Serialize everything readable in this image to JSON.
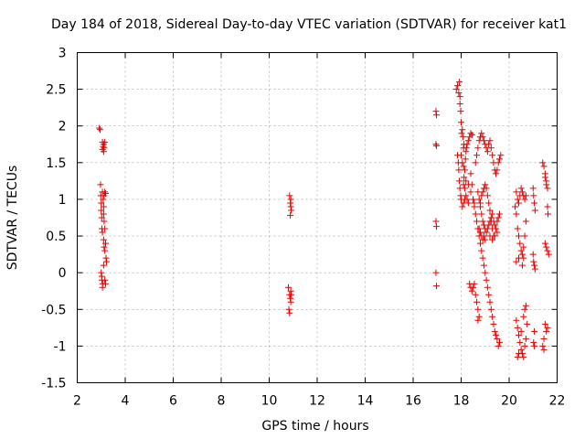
{
  "chart_data": {
    "type": "scatter",
    "title": "Day 184 of 2018, Sidereal Day-to-day VTEC variation (SDTVAR) for receiver kat1",
    "xlabel": "GPS time / hours",
    "ylabel": "SDTVAR / TECUs",
    "xlim": [
      2,
      22
    ],
    "ylim": [
      -1.5,
      3
    ],
    "xticks": [
      "2",
      "4",
      "6",
      "8",
      "10",
      "12",
      "14",
      "16",
      "18",
      "20",
      "22"
    ],
    "yticks": [
      "-1.5",
      "-1",
      "-0.5",
      "0",
      "0.5",
      "1",
      "1.5",
      "2",
      "2.5",
      "3"
    ],
    "grid": true,
    "marker": "+",
    "color": "#e60000",
    "series": [
      {
        "name": "SDTVAR",
        "points": [
          [
            2.92,
            1.97
          ],
          [
            2.95,
            1.95
          ],
          [
            2.97,
            1.2
          ],
          [
            2.98,
            1.05
          ],
          [
            3.0,
            0.95
          ],
          [
            3.0,
            0.85
          ],
          [
            3.02,
            0.75
          ],
          [
            3.03,
            0.6
          ],
          [
            3.05,
            0.55
          ],
          [
            3.0,
            0.0
          ],
          [
            3.02,
            -0.05
          ],
          [
            3.03,
            -0.1
          ],
          [
            3.05,
            -0.2
          ],
          [
            3.06,
            -0.15
          ],
          [
            3.05,
            1.78
          ],
          [
            3.08,
            1.72
          ],
          [
            3.1,
            1.65
          ],
          [
            3.12,
            1.7
          ],
          [
            3.1,
            1.75
          ],
          [
            3.15,
            1.78
          ],
          [
            3.05,
            1.68
          ],
          [
            3.05,
            1.1
          ],
          [
            3.08,
            1.0
          ],
          [
            3.1,
            0.9
          ],
          [
            3.12,
            1.05
          ],
          [
            3.15,
            1.1
          ],
          [
            3.18,
            1.08
          ],
          [
            3.1,
            0.8
          ],
          [
            3.12,
            0.7
          ],
          [
            3.15,
            0.6
          ],
          [
            3.18,
            0.4
          ],
          [
            3.1,
            0.45
          ],
          [
            3.15,
            0.3
          ],
          [
            3.2,
            0.2
          ],
          [
            3.22,
            0.15
          ],
          [
            3.1,
            0.1
          ],
          [
            3.15,
            -0.1
          ],
          [
            3.18,
            -0.15
          ],
          [
            3.12,
            0.35
          ],
          [
            10.85,
            1.05
          ],
          [
            10.88,
            0.95
          ],
          [
            10.9,
            0.9
          ],
          [
            10.92,
            0.85
          ],
          [
            10.88,
            0.78
          ],
          [
            10.9,
            1.0
          ],
          [
            10.8,
            -0.2
          ],
          [
            10.85,
            -0.3
          ],
          [
            10.88,
            -0.35
          ],
          [
            10.9,
            -0.4
          ],
          [
            10.82,
            -0.5
          ],
          [
            10.85,
            -0.55
          ],
          [
            10.92,
            -0.3
          ],
          [
            10.9,
            -0.25
          ],
          [
            16.95,
            2.2
          ],
          [
            16.97,
            2.15
          ],
          [
            16.95,
            1.75
          ],
          [
            16.97,
            1.73
          ],
          [
            16.95,
            0.7
          ],
          [
            16.97,
            0.63
          ],
          [
            16.95,
            0.0
          ],
          [
            16.97,
            -0.18
          ],
          [
            17.8,
            2.5
          ],
          [
            17.85,
            2.55
          ],
          [
            17.9,
            2.45
          ],
          [
            17.92,
            2.6
          ],
          [
            17.95,
            2.3
          ],
          [
            17.98,
            2.2
          ],
          [
            18.0,
            2.05
          ],
          [
            18.02,
            1.9
          ],
          [
            17.95,
            2.4
          ],
          [
            18.05,
            1.95
          ],
          [
            18.08,
            1.85
          ],
          [
            18.1,
            1.7
          ],
          [
            18.12,
            1.75
          ],
          [
            18.0,
            1.6
          ],
          [
            18.05,
            1.5
          ],
          [
            18.1,
            1.45
          ],
          [
            18.12,
            1.3
          ],
          [
            18.15,
            1.4
          ],
          [
            18.18,
            1.55
          ],
          [
            18.2,
            1.65
          ],
          [
            18.22,
            1.7
          ],
          [
            18.25,
            1.75
          ],
          [
            18.3,
            1.8
          ],
          [
            18.35,
            1.85
          ],
          [
            18.4,
            1.9
          ],
          [
            18.45,
            1.88
          ],
          [
            17.85,
            1.6
          ],
          [
            17.88,
            1.5
          ],
          [
            17.9,
            1.4
          ],
          [
            17.92,
            1.25
          ],
          [
            17.95,
            1.15
          ],
          [
            17.98,
            1.05
          ],
          [
            18.0,
            1.0
          ],
          [
            18.05,
            0.9
          ],
          [
            18.1,
            0.95
          ],
          [
            18.15,
            1.0
          ],
          [
            18.2,
            1.05
          ],
          [
            18.25,
            1.0
          ],
          [
            18.3,
            0.95
          ],
          [
            18.1,
            1.2
          ],
          [
            18.15,
            1.15
          ],
          [
            18.2,
            1.25
          ],
          [
            18.3,
            1.2
          ],
          [
            18.4,
            1.1
          ],
          [
            18.5,
            1.0
          ],
          [
            18.55,
            0.95
          ],
          [
            18.35,
            -0.15
          ],
          [
            18.4,
            -0.2
          ],
          [
            18.45,
            -0.25
          ],
          [
            18.5,
            -0.2
          ],
          [
            18.55,
            -0.15
          ],
          [
            18.6,
            -0.3
          ],
          [
            18.65,
            -0.4
          ],
          [
            18.7,
            -0.5
          ],
          [
            18.75,
            -0.6
          ],
          [
            18.7,
            -0.65
          ],
          [
            18.4,
            1.35
          ],
          [
            18.45,
            1.2
          ],
          [
            18.5,
            1.0
          ],
          [
            18.55,
            0.9
          ],
          [
            18.6,
            0.8
          ],
          [
            18.65,
            0.7
          ],
          [
            18.7,
            0.6
          ],
          [
            18.75,
            0.5
          ],
          [
            18.8,
            0.4
          ],
          [
            18.85,
            0.3
          ],
          [
            18.9,
            0.2
          ],
          [
            18.95,
            0.1
          ],
          [
            19.0,
            0.0
          ],
          [
            19.05,
            -0.1
          ],
          [
            19.1,
            -0.2
          ],
          [
            19.15,
            -0.3
          ],
          [
            19.2,
            -0.4
          ],
          [
            19.25,
            -0.5
          ],
          [
            19.3,
            -0.6
          ],
          [
            19.35,
            -0.7
          ],
          [
            19.4,
            -0.8
          ],
          [
            19.45,
            -0.85
          ],
          [
            19.5,
            -0.9
          ],
          [
            19.55,
            -1.0
          ],
          [
            19.6,
            -0.95
          ],
          [
            18.6,
            1.5
          ],
          [
            18.65,
            1.6
          ],
          [
            18.7,
            1.7
          ],
          [
            18.75,
            1.8
          ],
          [
            18.8,
            1.85
          ],
          [
            18.85,
            1.9
          ],
          [
            18.9,
            1.85
          ],
          [
            18.95,
            1.8
          ],
          [
            19.0,
            1.75
          ],
          [
            19.05,
            1.7
          ],
          [
            19.1,
            1.65
          ],
          [
            19.15,
            1.75
          ],
          [
            19.2,
            1.8
          ],
          [
            19.25,
            1.7
          ],
          [
            19.3,
            1.6
          ],
          [
            19.35,
            1.5
          ],
          [
            19.4,
            1.4
          ],
          [
            19.45,
            1.35
          ],
          [
            19.5,
            1.4
          ],
          [
            19.55,
            1.5
          ],
          [
            19.6,
            1.55
          ],
          [
            19.65,
            1.6
          ],
          [
            18.7,
            1.1
          ],
          [
            18.75,
            1.0
          ],
          [
            18.8,
            0.9
          ],
          [
            18.85,
            0.8
          ],
          [
            18.9,
            0.7
          ],
          [
            18.95,
            0.65
          ],
          [
            19.0,
            0.6
          ],
          [
            19.05,
            0.55
          ],
          [
            19.1,
            0.6
          ],
          [
            19.15,
            0.65
          ],
          [
            19.2,
            0.7
          ],
          [
            19.25,
            0.75
          ],
          [
            19.3,
            0.8
          ],
          [
            19.35,
            0.7
          ],
          [
            19.4,
            0.65
          ],
          [
            19.45,
            0.6
          ],
          [
            19.5,
            0.7
          ],
          [
            19.55,
            0.75
          ],
          [
            19.6,
            0.8
          ],
          [
            18.8,
            0.95
          ],
          [
            18.85,
            1.05
          ],
          [
            18.9,
            1.1
          ],
          [
            18.95,
            1.15
          ],
          [
            19.0,
            1.2
          ],
          [
            19.05,
            1.15
          ],
          [
            19.1,
            1.05
          ],
          [
            19.15,
            0.95
          ],
          [
            19.2,
            0.85
          ],
          [
            19.25,
            0.7
          ],
          [
            19.3,
            0.6
          ],
          [
            19.35,
            0.5
          ],
          [
            18.75,
            0.6
          ],
          [
            18.8,
            0.55
          ],
          [
            18.85,
            0.5
          ],
          [
            18.9,
            0.45
          ],
          [
            18.95,
            0.5
          ],
          [
            19.0,
            0.45
          ],
          [
            19.2,
            0.5
          ],
          [
            19.3,
            0.45
          ],
          [
            19.4,
            0.5
          ],
          [
            19.5,
            0.55
          ],
          [
            20.25,
            0.9
          ],
          [
            20.3,
            0.8
          ],
          [
            20.35,
            0.6
          ],
          [
            20.4,
            0.5
          ],
          [
            20.45,
            0.4
          ],
          [
            20.5,
            0.3
          ],
          [
            20.55,
            0.25
          ],
          [
            20.6,
            0.35
          ],
          [
            20.65,
            0.5
          ],
          [
            20.7,
            0.7
          ],
          [
            20.6,
            0.2
          ],
          [
            20.55,
            0.1
          ],
          [
            20.4,
            0.2
          ],
          [
            20.3,
            0.15
          ],
          [
            20.3,
            1.1
          ],
          [
            20.35,
            1.0
          ],
          [
            20.4,
            0.95
          ],
          [
            20.45,
            1.05
          ],
          [
            20.5,
            1.15
          ],
          [
            20.55,
            1.1
          ],
          [
            20.6,
            1.05
          ],
          [
            20.65,
            1.0
          ],
          [
            20.7,
            1.05
          ],
          [
            20.3,
            -0.65
          ],
          [
            20.35,
            -0.75
          ],
          [
            20.4,
            -0.85
          ],
          [
            20.45,
            -0.95
          ],
          [
            20.5,
            -1.05
          ],
          [
            20.55,
            -1.1
          ],
          [
            20.6,
            -1.15
          ],
          [
            20.5,
            -0.8
          ],
          [
            20.6,
            -0.6
          ],
          [
            20.65,
            -0.5
          ],
          [
            20.7,
            -0.45
          ],
          [
            20.75,
            -0.7
          ],
          [
            20.7,
            -0.9
          ],
          [
            20.65,
            -1.0
          ],
          [
            20.4,
            -1.1
          ],
          [
            20.35,
            -1.15
          ],
          [
            21.0,
            0.25
          ],
          [
            21.02,
            0.15
          ],
          [
            21.05,
            0.1
          ],
          [
            21.08,
            0.05
          ],
          [
            21.0,
            1.15
          ],
          [
            21.02,
            1.05
          ],
          [
            21.05,
            0.95
          ],
          [
            21.08,
            0.85
          ],
          [
            21.05,
            -0.8
          ],
          [
            21.02,
            -0.95
          ],
          [
            21.05,
            -1.0
          ],
          [
            21.4,
            1.5
          ],
          [
            21.45,
            1.45
          ],
          [
            21.5,
            1.3
          ],
          [
            21.55,
            1.2
          ],
          [
            21.6,
            1.15
          ],
          [
            21.5,
            1.35
          ],
          [
            21.55,
            1.25
          ],
          [
            21.6,
            0.9
          ],
          [
            21.62,
            0.8
          ],
          [
            21.5,
            0.4
          ],
          [
            21.55,
            0.35
          ],
          [
            21.6,
            0.3
          ],
          [
            21.65,
            0.25
          ],
          [
            21.5,
            -0.7
          ],
          [
            21.55,
            -0.8
          ],
          [
            21.45,
            -0.9
          ],
          [
            21.4,
            -1.0
          ],
          [
            21.45,
            -1.05
          ],
          [
            21.6,
            -0.75
          ]
        ]
      }
    ]
  }
}
